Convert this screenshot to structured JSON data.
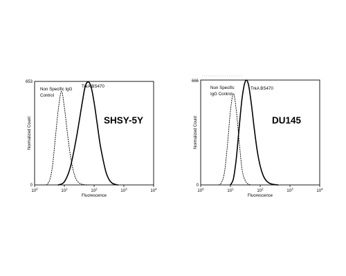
{
  "chart_data": [
    {
      "type": "line",
      "panel": "left",
      "cell_line": "SHSY-5Y",
      "xlabel": "Fluorescence",
      "ylabel": "Normalized Count",
      "x_scale": "log",
      "xlim": [
        1,
        10000
      ],
      "x_ticks": [
        {
          "base": "10",
          "exp": "0"
        },
        {
          "base": "10",
          "exp": "1"
        },
        {
          "base": "10",
          "exp": "2"
        },
        {
          "base": "10",
          "exp": "3"
        },
        {
          "base": "10",
          "exp": "4"
        }
      ],
      "ylim": [
        0,
        653
      ],
      "y_ticks": [
        "0",
        "653"
      ],
      "grid": false,
      "series": [
        {
          "name": "Non Specific IgG Control",
          "line_style": "dotted",
          "x": [
            2.5,
            3.2,
            4.0,
            5.0,
            6.3,
            8.0,
            10,
            12.6,
            15.8,
            20,
            25,
            32,
            40,
            50,
            63
          ],
          "y": [
            0,
            30,
            120,
            300,
            480,
            590,
            490,
            330,
            190,
            90,
            35,
            12,
            4,
            1,
            0
          ]
        },
        {
          "name": "TrkA BS470",
          "line_style": "solid",
          "x": [
            6.3,
            10,
            15.8,
            25,
            40,
            50,
            63,
            79,
            100,
            126,
            158,
            200,
            251,
            316,
            398,
            501,
            631
          ],
          "y": [
            0,
            20,
            110,
            290,
            520,
            620,
            650,
            620,
            520,
            390,
            260,
            160,
            80,
            35,
            12,
            4,
            0
          ]
        }
      ]
    },
    {
      "type": "line",
      "panel": "right",
      "cell_line": "DU145",
      "xlabel": "Fluorescence",
      "ylabel": "Normalized Count",
      "x_scale": "log",
      "xlim": [
        1,
        10000
      ],
      "x_ticks": [
        {
          "base": "10",
          "exp": "0"
        },
        {
          "base": "10",
          "exp": "1"
        },
        {
          "base": "10",
          "exp": "2"
        },
        {
          "base": "10",
          "exp": "3"
        },
        {
          "base": "10",
          "exp": "4"
        }
      ],
      "ylim": [
        0,
        666
      ],
      "y_ticks": [
        "0",
        "666"
      ],
      "grid": false,
      "series": [
        {
          "name": "Non Specific IgG Control",
          "line_style": "dotted",
          "x": [
            4.0,
            5.0,
            6.3,
            8.0,
            10,
            12.6,
            15.8,
            20,
            25,
            32,
            40,
            50
          ],
          "y": [
            0,
            15,
            80,
            260,
            470,
            580,
            470,
            260,
            90,
            25,
            5,
            0
          ]
        },
        {
          "name": "TrkA BS470",
          "line_style": "solid",
          "x": [
            10,
            12.6,
            15.8,
            20,
            25,
            32,
            40,
            50,
            63,
            79,
            100,
            126,
            158,
            200,
            251,
            316,
            398
          ],
          "y": [
            0,
            40,
            170,
            380,
            560,
            660,
            640,
            520,
            360,
            220,
            120,
            60,
            28,
            12,
            5,
            2,
            0
          ]
        }
      ]
    }
  ]
}
